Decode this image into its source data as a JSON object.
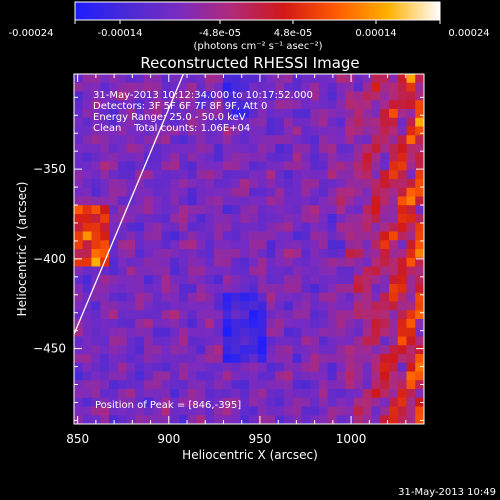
{
  "colorbar": {
    "tick_labels": [
      "-0.00024",
      "-0.00014",
      "-4.8e-05",
      "4.8e-05",
      "0.00014",
      "0.00024"
    ],
    "units": "(photons cm⁻² s⁻¹ asec⁻²)",
    "stops": [
      "#1e1eff",
      "#4a2ad6",
      "#7a2bc0",
      "#b02a7a",
      "#d01818",
      "#ff5a00",
      "#ffb000",
      "#ffffff"
    ]
  },
  "chart_data": {
    "type": "heatmap",
    "title": "Reconstructed RHESSI Image",
    "xlabel": "Heliocentric X (arcsec)",
    "ylabel": "Heliocentric Y (arcsec)",
    "xlim": [
      848,
      1040
    ],
    "ylim": [
      -492,
      -297
    ],
    "x_ticks": [
      850,
      900,
      950,
      1000
    ],
    "y_ticks": [
      -450,
      -400,
      -350
    ],
    "x_tick_labels": [
      "850",
      "900",
      "950",
      "1000"
    ],
    "y_tick_labels": [
      "−450",
      "−400",
      "−350"
    ],
    "peak": [
      846,
      -395
    ],
    "limb_line": [
      [
        848,
        -442
      ],
      [
        908,
        -297
      ]
    ],
    "annotations": [
      "31-May-2013 10:12:34.000 to 10:17:52.000",
      "Detectors: 3F 5F 6F 7F 8F 9F, Att 0",
      "Energy Range: 25.0 - 50.0 keV",
      "Clean    Total counts: 1.06E+04",
      "Position of Peak = [846,-395]"
    ]
  },
  "footer": {
    "timestamp": "31-May-2013 10:49"
  }
}
